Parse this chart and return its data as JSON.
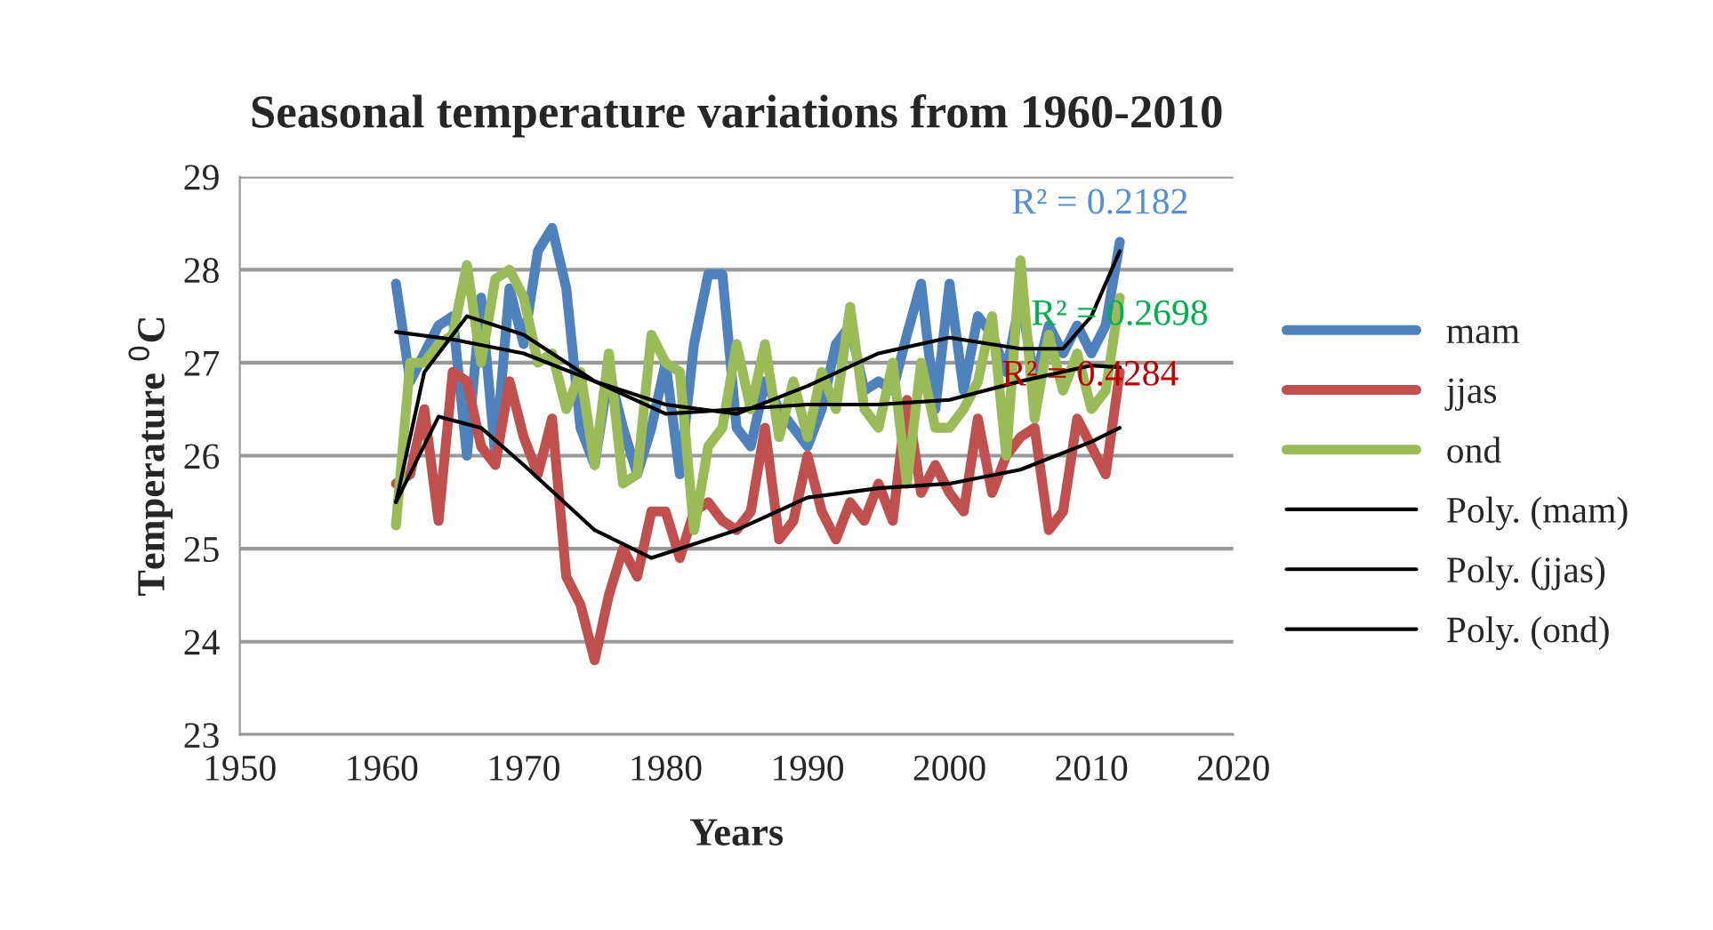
{
  "chart_data": {
    "type": "line",
    "title": "Seasonal temperature variations from 1960-2010",
    "xlabel": "Years",
    "ylabel": "Temperature $^{0}$C",
    "x": [
      1961,
      1962,
      1963,
      1964,
      1965,
      1966,
      1967,
      1968,
      1969,
      1970,
      1971,
      1972,
      1973,
      1974,
      1975,
      1976,
      1977,
      1978,
      1979,
      1980,
      1981,
      1982,
      1983,
      1984,
      1985,
      1986,
      1987,
      1988,
      1989,
      1990,
      1991,
      1992,
      1993,
      1994,
      1995,
      1996,
      1997,
      1998,
      1999,
      2000,
      2001,
      2002,
      2003,
      2004,
      2005,
      2006,
      2007,
      2008,
      2009,
      2010,
      2011,
      2012
    ],
    "series": [
      {
        "name": "mam",
        "color": "#4f81bd",
        "values": [
          27.85,
          26.8,
          27.1,
          27.4,
          27.5,
          26.0,
          27.7,
          26.0,
          27.8,
          27.2,
          28.2,
          28.45,
          27.8,
          26.3,
          25.9,
          26.9,
          26.3,
          25.8,
          26.3,
          27.0,
          25.8,
          27.2,
          27.95,
          27.95,
          26.3,
          26.1,
          26.8,
          26.5,
          26.3,
          26.1,
          26.5,
          27.2,
          27.4,
          26.7,
          26.8,
          26.7,
          27.3,
          27.85,
          26.5,
          27.85,
          26.7,
          27.5,
          27.3,
          26.9,
          27.7,
          26.8,
          27.4,
          27.1,
          27.4,
          27.1,
          27.4,
          28.3
        ]
      },
      {
        "name": "jjas",
        "color": "#c0504d",
        "values": [
          25.7,
          25.8,
          26.5,
          25.3,
          26.9,
          26.8,
          26.1,
          25.9,
          26.8,
          26.2,
          25.8,
          26.4,
          24.7,
          24.4,
          23.8,
          24.5,
          25.0,
          24.7,
          25.4,
          25.4,
          24.9,
          25.4,
          25.5,
          25.3,
          25.2,
          25.4,
          26.3,
          25.1,
          25.3,
          26.0,
          25.4,
          25.1,
          25.5,
          25.3,
          25.7,
          25.3,
          26.6,
          25.6,
          25.9,
          25.6,
          25.4,
          26.4,
          25.6,
          26.0,
          26.2,
          26.3,
          25.2,
          25.4,
          26.4,
          26.1,
          25.8,
          26.9
        ]
      },
      {
        "name": "ond",
        "color": "#9bbb59",
        "values": [
          25.25,
          27.0,
          27.0,
          27.2,
          27.3,
          28.05,
          27.0,
          27.9,
          28.0,
          27.7,
          27.0,
          27.1,
          26.5,
          26.9,
          25.9,
          27.1,
          25.7,
          25.8,
          27.3,
          27.0,
          26.9,
          25.2,
          26.1,
          26.3,
          27.2,
          26.5,
          27.2,
          26.2,
          26.8,
          26.2,
          26.9,
          26.5,
          27.6,
          26.5,
          26.3,
          27.0,
          25.7,
          27.0,
          26.3,
          26.3,
          26.5,
          26.8,
          27.5,
          26.0,
          28.1,
          26.4,
          27.3,
          26.7,
          27.1,
          26.5,
          26.7,
          27.7
        ]
      },
      {
        "name": "Poly. (mam)",
        "type": "line",
        "color": "#000000",
        "x": [
          1961,
          1965,
          1970,
          1975,
          1980,
          1985,
          1990,
          1995,
          2000,
          2005,
          2008,
          2010,
          2012
        ],
        "values": [
          27.33,
          27.25,
          27.1,
          26.8,
          26.55,
          26.45,
          26.75,
          27.1,
          27.27,
          27.15,
          27.15,
          27.5,
          28.2
        ]
      },
      {
        "name": "Poly. (jjas)",
        "type": "line",
        "color": "#000000",
        "x": [
          1961,
          1964,
          1967,
          1970,
          1975,
          1979,
          1985,
          1990,
          1995,
          2000,
          2005,
          2010,
          2012
        ],
        "values": [
          25.5,
          26.42,
          26.3,
          25.9,
          25.2,
          24.9,
          25.2,
          25.55,
          25.65,
          25.7,
          25.85,
          26.15,
          26.3
        ]
      },
      {
        "name": "Poly. (ond)",
        "type": "line",
        "color": "#000000",
        "x": [
          1961,
          1963,
          1966,
          1970,
          1975,
          1980,
          1985,
          1990,
          1995,
          2000,
          2005,
          2010,
          2012
        ],
        "values": [
          25.5,
          26.9,
          27.5,
          27.3,
          26.8,
          26.45,
          26.5,
          26.55,
          26.55,
          26.6,
          26.8,
          26.97,
          26.95
        ]
      }
    ],
    "annotations": [
      "R² = 0.2182",
      "R² = 0.4284",
      "R² = 0.2698"
    ],
    "xlim": [
      1950,
      2020
    ],
    "xticks": [
      1950,
      1960,
      1970,
      1980,
      1990,
      2000,
      2010,
      2020
    ],
    "ylim": [
      23,
      29
    ],
    "yticks": [
      23,
      24,
      25,
      26,
      27,
      28,
      29
    ],
    "grid": "y",
    "legend": "right",
    "marker": "none",
    "line_style": "solid"
  }
}
